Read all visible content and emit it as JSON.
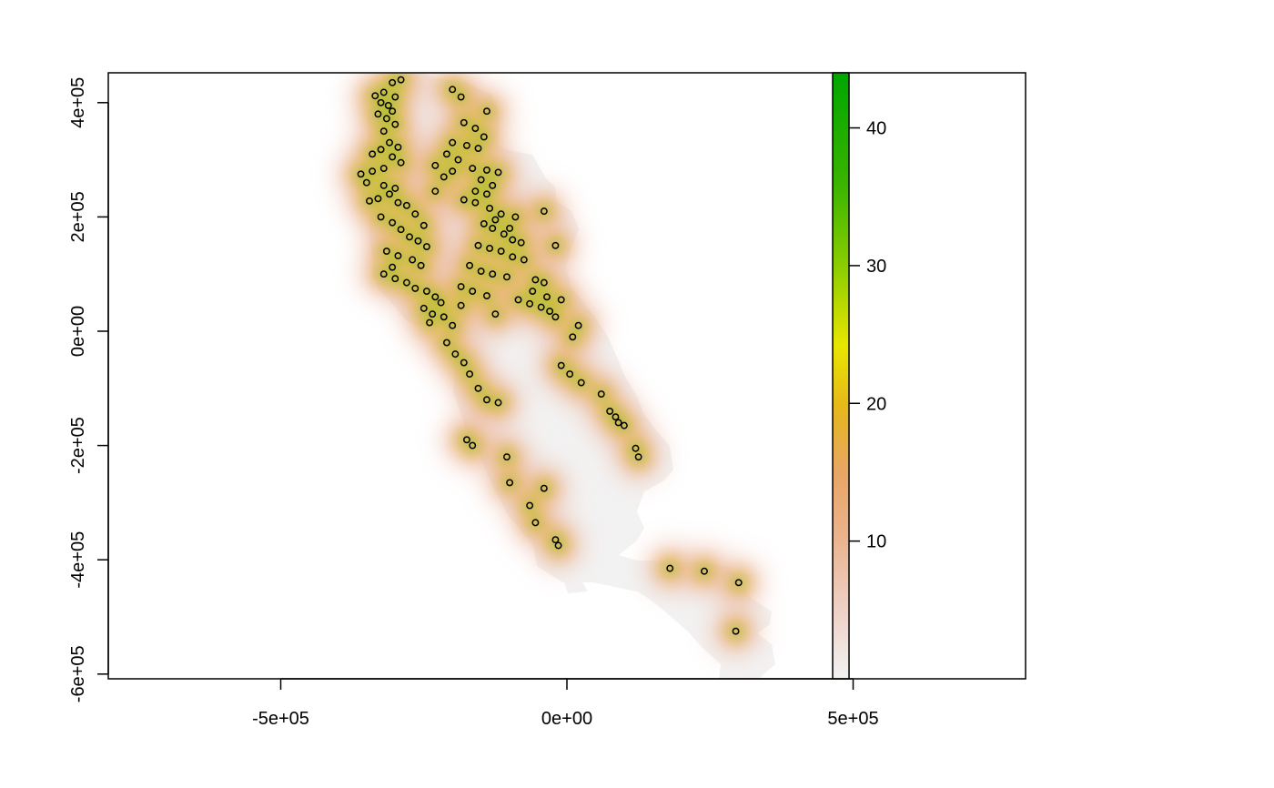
{
  "chart_data": {
    "type": "heatmap",
    "title": "",
    "xlabel": "",
    "ylabel": "",
    "xlim": [
      -800000,
      800000
    ],
    "ylim": [
      -600000,
      450000
    ],
    "x_ticks": [
      {
        "value": -500000,
        "label": "-5e+05"
      },
      {
        "value": 0,
        "label": "0e+00"
      },
      {
        "value": 500000,
        "label": "5e+05"
      }
    ],
    "y_ticks": [
      {
        "value": -600000,
        "label": "-6e+05"
      },
      {
        "value": -400000,
        "label": "-4e+05"
      },
      {
        "value": -200000,
        "label": "-2e+05"
      },
      {
        "value": 0,
        "label": "0e+00"
      },
      {
        "value": 200000,
        "label": "2e+05"
      },
      {
        "value": 400000,
        "label": "4e+05"
      }
    ],
    "legend": {
      "placement": "right",
      "min": 0,
      "max": 44,
      "ticks": [
        {
          "value": 10,
          "label": "10"
        },
        {
          "value": 20,
          "label": "20"
        },
        {
          "value": 30,
          "label": "30"
        },
        {
          "value": 40,
          "label": "40"
        }
      ],
      "colors": [
        "#f2f2f2",
        "#ebb48f",
        "#e6a53a",
        "#e8e600",
        "#8ccd00",
        "#00a600"
      ]
    },
    "background_land_color": "#f2f2f2",
    "point_style": "open-circle",
    "points": [
      [
        -305000,
        435000
      ],
      [
        -290000,
        440000
      ],
      [
        -320000,
        418000
      ],
      [
        -335000,
        412000
      ],
      [
        -300000,
        410000
      ],
      [
        -325000,
        400000
      ],
      [
        -312000,
        395000
      ],
      [
        -305000,
        385000
      ],
      [
        -330000,
        380000
      ],
      [
        -315000,
        372000
      ],
      [
        -300000,
        362000
      ],
      [
        -320000,
        350000
      ],
      [
        -310000,
        330000
      ],
      [
        -295000,
        322000
      ],
      [
        -325000,
        318000
      ],
      [
        -340000,
        310000
      ],
      [
        -305000,
        305000
      ],
      [
        -290000,
        295000
      ],
      [
        -320000,
        285000
      ],
      [
        -340000,
        280000
      ],
      [
        -360000,
        275000
      ],
      [
        -350000,
        260000
      ],
      [
        -320000,
        255000
      ],
      [
        -300000,
        250000
      ],
      [
        -310000,
        240000
      ],
      [
        -330000,
        232000
      ],
      [
        -345000,
        228000
      ],
      [
        -295000,
        225000
      ],
      [
        -280000,
        220000
      ],
      [
        -265000,
        205000
      ],
      [
        -325000,
        200000
      ],
      [
        -305000,
        190000
      ],
      [
        -290000,
        178000
      ],
      [
        -275000,
        165000
      ],
      [
        -260000,
        158000
      ],
      [
        -245000,
        148000
      ],
      [
        -315000,
        140000
      ],
      [
        -295000,
        132000
      ],
      [
        -270000,
        125000
      ],
      [
        -255000,
        115000
      ],
      [
        -305000,
        112000
      ],
      [
        -320000,
        100000
      ],
      [
        -300000,
        92000
      ],
      [
        -280000,
        85000
      ],
      [
        -265000,
        75000
      ],
      [
        -245000,
        70000
      ],
      [
        -230000,
        60000
      ],
      [
        -220000,
        50000
      ],
      [
        -250000,
        40000
      ],
      [
        -235000,
        30000
      ],
      [
        -215000,
        25000
      ],
      [
        -240000,
        15000
      ],
      [
        -200000,
        423000
      ],
      [
        -185000,
        410000
      ],
      [
        -140000,
        385000
      ],
      [
        -180000,
        365000
      ],
      [
        -160000,
        355000
      ],
      [
        -145000,
        340000
      ],
      [
        -200000,
        330000
      ],
      [
        -175000,
        325000
      ],
      [
        -155000,
        320000
      ],
      [
        -210000,
        310000
      ],
      [
        -190000,
        300000
      ],
      [
        -165000,
        285000
      ],
      [
        -140000,
        282000
      ],
      [
        -120000,
        278000
      ],
      [
        -200000,
        280000
      ],
      [
        -215000,
        270000
      ],
      [
        -150000,
        265000
      ],
      [
        -130000,
        255000
      ],
      [
        -160000,
        245000
      ],
      [
        -140000,
        240000
      ],
      [
        -180000,
        230000
      ],
      [
        -160000,
        225000
      ],
      [
        -135000,
        215000
      ],
      [
        -115000,
        205000
      ],
      [
        -125000,
        195000
      ],
      [
        -145000,
        188000
      ],
      [
        -130000,
        180000
      ],
      [
        -110000,
        170000
      ],
      [
        -95000,
        160000
      ],
      [
        -80000,
        155000
      ],
      [
        -155000,
        150000
      ],
      [
        -135000,
        145000
      ],
      [
        -115000,
        140000
      ],
      [
        -95000,
        130000
      ],
      [
        -75000,
        125000
      ],
      [
        -170000,
        115000
      ],
      [
        -150000,
        105000
      ],
      [
        -130000,
        100000
      ],
      [
        -105000,
        95000
      ],
      [
        -55000,
        90000
      ],
      [
        -40000,
        85000
      ],
      [
        -185000,
        78000
      ],
      [
        -165000,
        70000
      ],
      [
        -140000,
        62000
      ],
      [
        -85000,
        55000
      ],
      [
        -65000,
        48000
      ],
      [
        -45000,
        42000
      ],
      [
        -30000,
        35000
      ],
      [
        -20000,
        25000
      ],
      [
        -125000,
        30000
      ],
      [
        -185000,
        45000
      ],
      [
        -210000,
        -20000
      ],
      [
        -195000,
        -40000
      ],
      [
        -180000,
        -55000
      ],
      [
        -170000,
        -75000
      ],
      [
        -155000,
        -100000
      ],
      [
        -140000,
        -120000
      ],
      [
        -120000,
        -125000
      ],
      [
        -175000,
        -190000
      ],
      [
        -165000,
        -200000
      ],
      [
        -105000,
        -220000
      ],
      [
        -100000,
        -265000
      ],
      [
        -40000,
        -275000
      ],
      [
        -65000,
        -305000
      ],
      [
        -55000,
        -335000
      ],
      [
        -20000,
        -365000
      ],
      [
        -15000,
        -375000
      ],
      [
        10000,
        -10000
      ],
      [
        20000,
        10000
      ],
      [
        -10000,
        -60000
      ],
      [
        5000,
        -75000
      ],
      [
        25000,
        -90000
      ],
      [
        60000,
        -110000
      ],
      [
        75000,
        -140000
      ],
      [
        85000,
        -150000
      ],
      [
        90000,
        -160000
      ],
      [
        100000,
        -165000
      ],
      [
        120000,
        -205000
      ],
      [
        125000,
        -220000
      ],
      [
        180000,
        -415000
      ],
      [
        240000,
        -420000
      ],
      [
        300000,
        -440000
      ],
      [
        295000,
        -525000
      ],
      [
        -230000,
        290000
      ],
      [
        -100000,
        180000
      ],
      [
        -90000,
        200000
      ],
      [
        -40000,
        210000
      ],
      [
        -20000,
        150000
      ],
      [
        -60000,
        70000
      ],
      [
        -35000,
        60000
      ],
      [
        -200000,
        10000
      ],
      [
        -10000,
        55000
      ],
      [
        -250000,
        185000
      ],
      [
        -230000,
        245000
      ]
    ]
  }
}
